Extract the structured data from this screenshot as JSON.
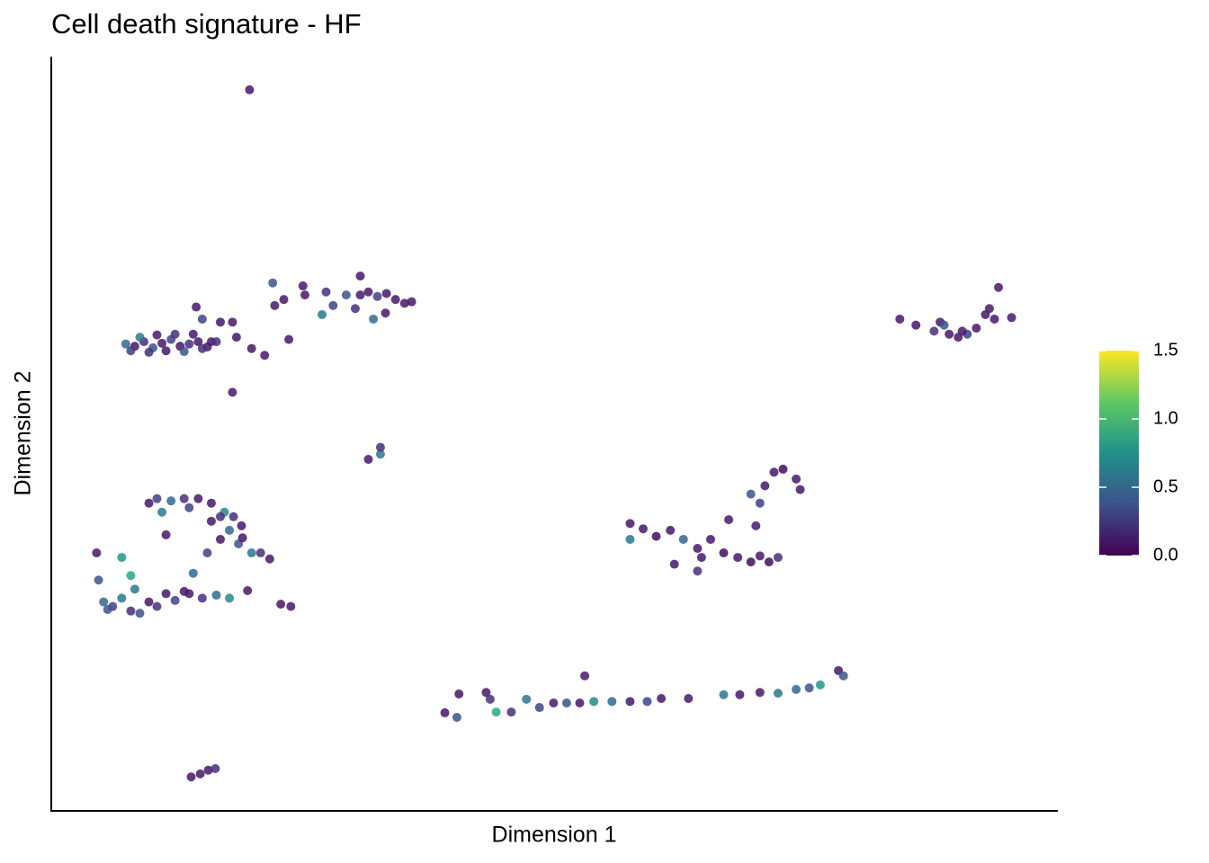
{
  "chart_data": {
    "type": "scatter",
    "title": "Cell death signature - HF",
    "xlabel": "Dimension 1",
    "ylabel": "Dimension 2",
    "colormap": "viridis",
    "xlim": [
      0,
      100
    ],
    "ylim": [
      0,
      100
    ],
    "x": [
      19.7,
      7.4,
      8.3,
      9.2,
      10.1,
      11.0,
      11.9,
      12.8,
      13.7,
      14.6,
      15.5,
      7.9,
      9.7,
      11.4,
      13.2,
      15.0,
      15.9,
      8.8,
      10.5,
      12.3,
      14.1,
      14.4,
      15.0,
      16.8,
      18.0,
      18.4,
      19.9,
      21.2,
      18.0,
      16.4,
      22.0,
      23.1,
      22.2,
      25.0,
      25.2,
      27.3,
      26.9,
      28.0,
      29.3,
      30.7,
      30.7,
      31.5,
      32.4,
      33.3,
      34.2,
      35.1,
      35.8,
      32.0,
      30.2,
      23.6,
      33.2,
      31.5,
      32.7,
      32.7,
      9.7,
      10.5,
      11.9,
      13.2,
      14.6,
      15.9,
      17.2,
      18.1,
      18.9,
      16.8,
      15.5,
      18.6,
      19.9,
      20.8,
      21.7,
      11.4,
      13.7,
      16.8,
      17.7,
      19.0,
      11.0,
      15.9,
      4.5,
      4.7,
      5.2,
      6.1,
      7.0,
      7.9,
      8.8,
      9.7,
      10.5,
      11.4,
      12.3,
      13.7,
      15.0,
      16.4,
      17.7,
      7.0,
      7.9,
      19.5,
      22.8,
      23.8,
      5.6,
      8.3,
      14.1,
      13.2,
      13.9,
      14.8,
      15.6,
      16.3,
      57.5,
      58.8,
      60.1,
      61.5,
      62.8,
      64.2,
      65.5,
      66.8,
      68.2,
      69.5,
      70.4,
      71.3,
      72.2,
      70.0,
      70.4,
      70.9,
      71.8,
      72.7,
      74.0,
      74.4,
      61.9,
      64.2,
      67.3,
      69.5,
      57.5,
      64.6,
      39.1,
      40.3,
      40.5,
      43.2,
      44.2,
      45.7,
      47.2,
      48.5,
      49.9,
      51.2,
      52.5,
      53.9,
      55.7,
      57.5,
      59.2,
      60.6,
      63.3,
      66.8,
      68.4,
      70.4,
      72.2,
      74.0,
      75.3,
      76.4,
      78.2,
      78.7,
      53.0,
      43.6,
      84.3,
      85.9,
      87.7,
      88.3,
      89.2,
      90.1,
      91.0,
      91.9,
      92.8,
      93.2,
      93.7,
      94.1,
      95.4,
      88.7,
      90.5
    ],
    "y": [
      95.6,
      61.9,
      61.6,
      62.2,
      61.4,
      62.0,
      62.5,
      61.6,
      61.9,
      62.2,
      61.5,
      61.0,
      60.8,
      61.0,
      60.9,
      61.3,
      62.2,
      62.8,
      63.1,
      63.2,
      63.2,
      66.8,
      65.2,
      64.8,
      64.8,
      62.8,
      61.3,
      60.4,
      55.5,
      62.2,
      70.0,
      67.8,
      67.0,
      69.6,
      68.4,
      68.8,
      65.8,
      67.0,
      68.4,
      70.9,
      68.4,
      68.8,
      68.2,
      68.6,
      67.8,
      67.3,
      67.5,
      65.2,
      66.6,
      62.5,
      66.0,
      46.6,
      47.3,
      48.2,
      40.8,
      41.4,
      41.1,
      41.4,
      41.4,
      40.8,
      39.6,
      39.0,
      37.8,
      36.0,
      34.2,
      35.4,
      34.2,
      34.2,
      33.4,
      36.6,
      40.2,
      39.0,
      37.2,
      36.2,
      39.6,
      38.4,
      34.2,
      30.6,
      27.7,
      27.1,
      28.2,
      26.5,
      26.2,
      27.7,
      27.1,
      28.8,
      27.9,
      28.8,
      28.2,
      28.6,
      28.2,
      33.6,
      31.2,
      29.2,
      27.4,
      27.1,
      26.7,
      29.4,
      31.5,
      29.1,
      4.5,
      4.9,
      5.4,
      5.6,
      38.1,
      37.4,
      36.4,
      37.2,
      36.0,
      34.8,
      36.0,
      34.2,
      33.6,
      33.0,
      33.8,
      33.0,
      33.6,
      37.8,
      40.8,
      43.1,
      44.9,
      45.3,
      44.0,
      42.6,
      32.7,
      31.8,
      38.6,
      42.0,
      36.0,
      33.6,
      13.0,
      12.4,
      15.5,
      15.7,
      13.1,
      13.1,
      14.8,
      13.7,
      14.3,
      14.3,
      14.3,
      14.5,
      14.5,
      14.5,
      14.5,
      14.9,
      14.9,
      15.4,
      15.4,
      15.7,
      15.6,
      16.1,
      16.3,
      16.7,
      18.6,
      17.9,
      17.9,
      14.8,
      65.2,
      64.4,
      63.6,
      64.8,
      63.2,
      62.8,
      63.2,
      64.0,
      65.8,
      66.6,
      65.2,
      69.4,
      65.4,
      64.4,
      63.6
    ],
    "values": [
      0.1,
      0.5,
      0.1,
      0.2,
      0.4,
      0.1,
      0.3,
      0.1,
      0.2,
      0.1,
      0.1,
      0.3,
      0.2,
      0.1,
      0.4,
      0.2,
      0.1,
      0.6,
      0.1,
      0.2,
      0.1,
      0.1,
      0.3,
      0.1,
      0.1,
      0.1,
      0.1,
      0.1,
      0.1,
      0.2,
      0.4,
      0.1,
      0.1,
      0.1,
      0.1,
      0.2,
      0.6,
      0.3,
      0.4,
      0.1,
      0.1,
      0.1,
      0.3,
      0.1,
      0.1,
      0.1,
      0.1,
      0.5,
      0.2,
      0.1,
      0.1,
      0.1,
      0.6,
      0.2,
      0.1,
      0.3,
      0.5,
      0.2,
      0.1,
      0.1,
      0.7,
      0.2,
      0.1,
      0.1,
      0.3,
      0.4,
      0.6,
      0.2,
      0.1,
      0.1,
      0.3,
      0.2,
      0.5,
      0.1,
      0.6,
      0.1,
      0.1,
      0.4,
      0.5,
      0.3,
      0.6,
      0.2,
      0.4,
      0.1,
      0.2,
      0.1,
      0.3,
      0.1,
      0.2,
      0.5,
      0.7,
      0.8,
      0.9,
      0.1,
      0.1,
      0.1,
      0.4,
      0.6,
      0.5,
      0.1,
      0.1,
      0.1,
      0.1,
      0.2,
      0.1,
      0.1,
      0.05,
      0.1,
      0.5,
      0.1,
      0.1,
      0.05,
      0.1,
      0.05,
      0.1,
      0.05,
      0.2,
      0.1,
      0.3,
      0.1,
      0.1,
      0.05,
      0.1,
      0.1,
      0.1,
      0.2,
      0.1,
      0.4,
      0.6,
      0.1,
      0.1,
      0.4,
      0.1,
      0.1,
      0.9,
      0.2,
      0.6,
      0.3,
      0.1,
      0.4,
      0.1,
      0.7,
      0.5,
      0.1,
      0.3,
      0.1,
      0.1,
      0.6,
      0.1,
      0.1,
      0.6,
      0.5,
      0.4,
      0.8,
      0.1,
      0.4,
      0.1,
      0.2,
      0.1,
      0.1,
      0.2,
      0.1,
      0.1,
      0.1,
      0.3,
      0.1,
      0.1,
      0.1,
      0.1,
      0.1,
      0.1,
      0.4,
      0.1
    ],
    "clim": [
      0,
      1.5
    ],
    "cticks": [
      {
        "value": 0,
        "label": "0.0"
      },
      {
        "value": 0.5,
        "label": "0.5"
      },
      {
        "value": 1,
        "label": "1.0"
      },
      {
        "value": 1.5,
        "label": "1.5"
      }
    ]
  }
}
